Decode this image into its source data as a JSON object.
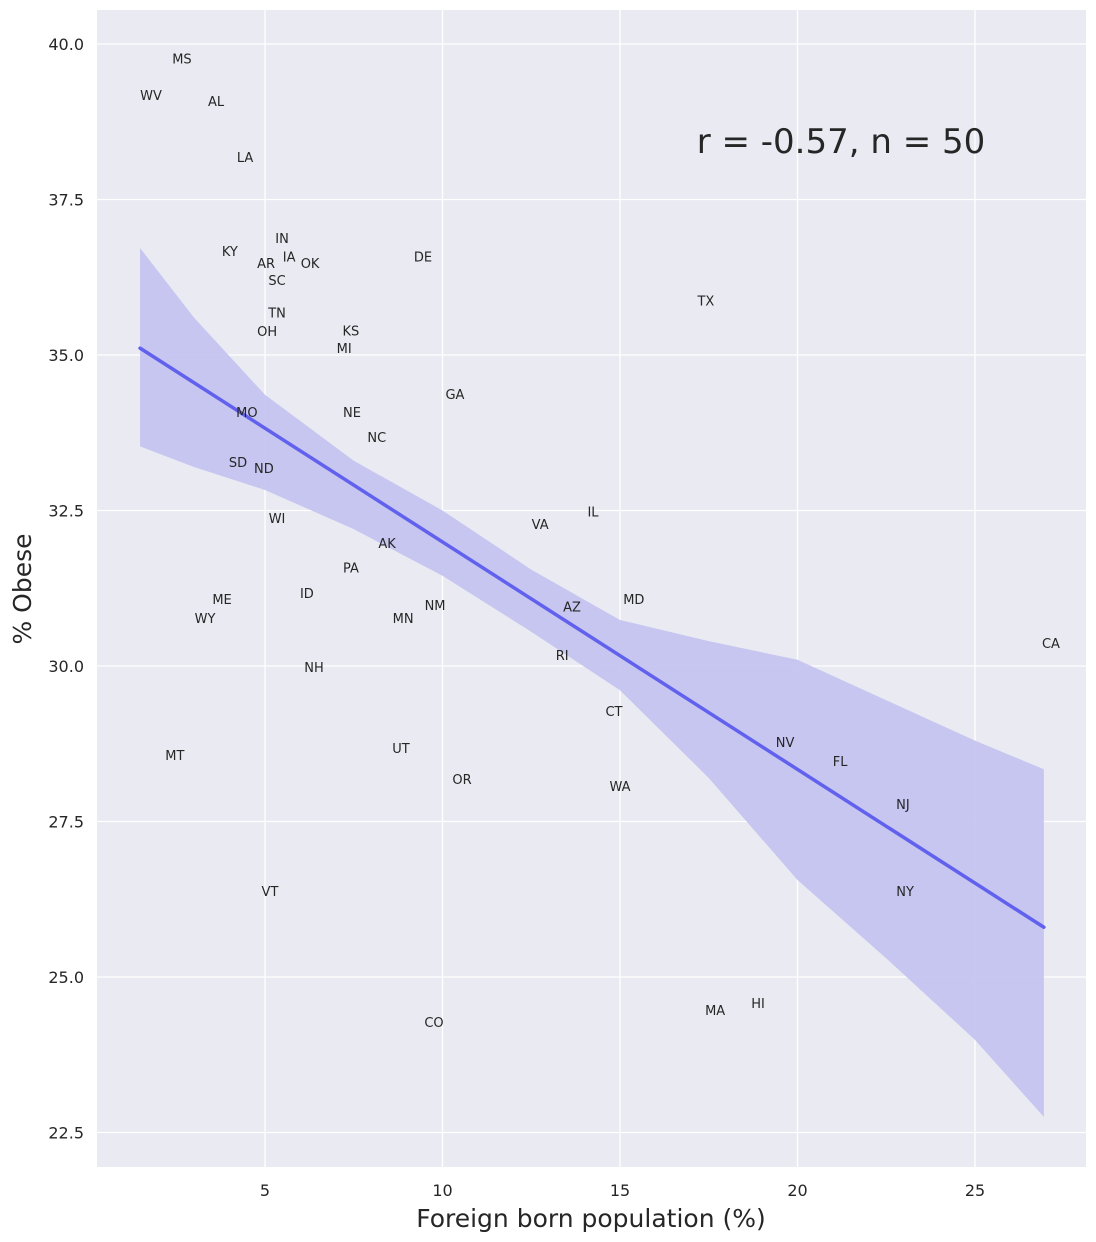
{
  "chart_data": {
    "type": "scatter",
    "xlabel": "Foreign born population (%)",
    "ylabel": "% Obese",
    "xlim": [
      0.5,
      28.4
    ],
    "ylim": [
      21.9,
      40.55
    ],
    "xticks": [
      5,
      10,
      15,
      20,
      25
    ],
    "xtick_labels": [
      "5",
      "10",
      "15",
      "20",
      "25"
    ],
    "yticks": [
      22.5,
      25.0,
      27.5,
      30.0,
      32.5,
      35.0,
      37.5,
      40.0
    ],
    "ytick_labels": [
      "22.5",
      "25.0",
      "27.5",
      "30.0",
      "32.5",
      "35.0",
      "37.5",
      "40.0"
    ],
    "grid": true,
    "annotation": "r = -0.57, n = 50",
    "colors": {
      "background": "#eaeaf2",
      "grid": "#ffffff",
      "line": "#6161ee",
      "band": "#c4c4f0",
      "text": "#262626"
    },
    "points": [
      {
        "label": "MS",
        "x": 2.66,
        "y": 39.77
      },
      {
        "label": "WV",
        "x": 1.79,
        "y": 39.18
      },
      {
        "label": "AL",
        "x": 3.62,
        "y": 39.08
      },
      {
        "label": "LA",
        "x": 4.44,
        "y": 38.18
      },
      {
        "label": "IN",
        "x": 5.48,
        "y": 36.88
      },
      {
        "label": "KY",
        "x": 4.01,
        "y": 36.67
      },
      {
        "label": "IA",
        "x": 5.68,
        "y": 36.58
      },
      {
        "label": "AR",
        "x": 5.03,
        "y": 36.48
      },
      {
        "label": "OK",
        "x": 6.27,
        "y": 36.48
      },
      {
        "label": "SC",
        "x": 5.34,
        "y": 36.27
      },
      {
        "label": "DE",
        "x": 9.45,
        "y": 36.58
      },
      {
        "label": "TX",
        "x": 17.42,
        "y": 35.88
      },
      {
        "label": "TN",
        "x": 5.34,
        "y": 35.68
      },
      {
        "label": "OH",
        "x": 5.06,
        "y": 35.58
      },
      {
        "label": "KS",
        "x": 7.42,
        "y": 35.39
      },
      {
        "label": "MI",
        "x": 7.23,
        "y": 35.27
      },
      {
        "label": "GA",
        "x": 10.35,
        "y": 34.37
      },
      {
        "label": "MO",
        "x": 4.49,
        "y": 34.08
      },
      {
        "label": "NE",
        "x": 7.45,
        "y": 34.08
      },
      {
        "label": "NC",
        "x": 8.15,
        "y": 33.68
      },
      {
        "label": "SD",
        "x": 4.24,
        "y": 33.28
      },
      {
        "label": "ND",
        "x": 4.97,
        "y": 33.18
      },
      {
        "label": "IL",
        "x": 14.24,
        "y": 32.48
      },
      {
        "label": "WI",
        "x": 5.34,
        "y": 32.38
      },
      {
        "label": "VA",
        "x": 12.75,
        "y": 32.28
      },
      {
        "label": "AK",
        "x": 8.44,
        "y": 31.98
      },
      {
        "label": "PA",
        "x": 7.42,
        "y": 31.58
      },
      {
        "label": "ME",
        "x": 3.79,
        "y": 31.08
      },
      {
        "label": "ID",
        "x": 6.18,
        "y": 31.17
      },
      {
        "label": "MD",
        "x": 15.39,
        "y": 31.08
      },
      {
        "label": "AZ",
        "x": 13.65,
        "y": 30.96
      },
      {
        "label": "NM",
        "x": 9.79,
        "y": 30.98
      },
      {
        "label": "WY",
        "x": 3.31,
        "y": 30.77
      },
      {
        "label": "MN",
        "x": 8.89,
        "y": 30.77
      },
      {
        "label": "CA",
        "x": 27.14,
        "y": 30.37
      },
      {
        "label": "RI",
        "x": 13.37,
        "y": 30.18
      },
      {
        "label": "NH",
        "x": 6.38,
        "y": 29.98
      },
      {
        "label": "CT",
        "x": 14.83,
        "y": 29.28
      },
      {
        "label": "MT",
        "x": 2.46,
        "y": 28.57
      },
      {
        "label": "UT",
        "x": 8.83,
        "y": 28.68
      },
      {
        "label": "NV",
        "x": 19.65,
        "y": 28.78
      },
      {
        "label": "FL",
        "x": 21.2,
        "y": 28.47
      },
      {
        "label": "OR",
        "x": 10.55,
        "y": 28.18
      },
      {
        "label": "WA",
        "x": 15.0,
        "y": 28.07
      },
      {
        "label": "NJ",
        "x": 22.97,
        "y": 27.78
      },
      {
        "label": "VT",
        "x": 5.14,
        "y": 26.38
      },
      {
        "label": "NY",
        "x": 23.03,
        "y": 26.38
      },
      {
        "label": "HI",
        "x": 18.89,
        "y": 24.58
      },
      {
        "label": "MA",
        "x": 17.68,
        "y": 24.47
      },
      {
        "label": "CO",
        "x": 9.76,
        "y": 24.28
      }
    ],
    "regression": {
      "x": [
        1.48,
        26.94
      ],
      "y": [
        35.11,
        25.8
      ]
    },
    "confidence_band": {
      "x": [
        1.48,
        3,
        5,
        7.5,
        10,
        12.5,
        15,
        17.5,
        20,
        22.5,
        25,
        26.94
      ],
      "upper": [
        36.72,
        35.6,
        34.36,
        33.3,
        32.5,
        31.55,
        30.74,
        30.4,
        30.1,
        29.45,
        28.8,
        28.34
      ],
      "lower": [
        33.53,
        33.2,
        32.83,
        32.2,
        31.45,
        30.55,
        29.61,
        28.2,
        26.56,
        25.3,
        23.99,
        22.75
      ]
    }
  }
}
